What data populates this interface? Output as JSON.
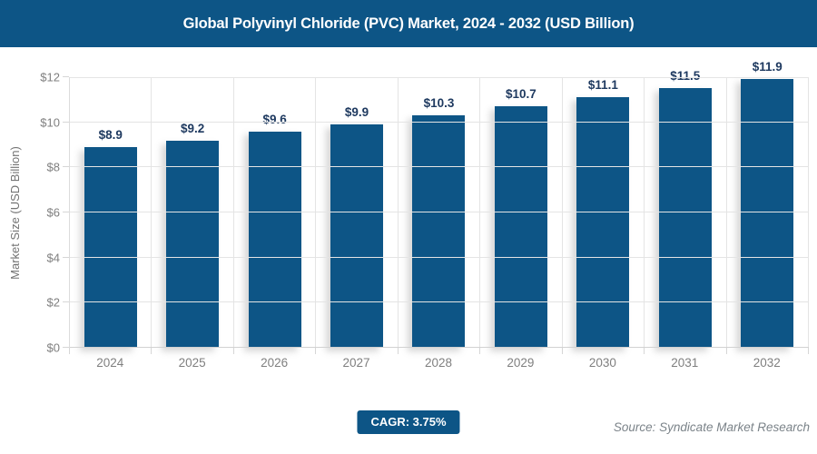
{
  "header": {
    "title": "Global Polyvinyl Chloride (PVC) Market, 2024 - 2032 (USD Billion)"
  },
  "chart_data": {
    "type": "bar",
    "title": "Global Polyvinyl Chloride (PVC) Market, 2024 - 2032 (USD Billion)",
    "categories": [
      "2024",
      "2025",
      "2026",
      "2027",
      "2028",
      "2029",
      "2030",
      "2031",
      "2032"
    ],
    "values": [
      8.9,
      9.2,
      9.6,
      9.9,
      10.3,
      10.7,
      11.1,
      11.5,
      11.9
    ],
    "value_labels": [
      "$8.9",
      "$9.2",
      "$9.6",
      "$9.9",
      "$10.3",
      "$10.7",
      "$11.1",
      "$11.5",
      "$11.9"
    ],
    "xlabel": "",
    "ylabel": "Market Size (USD Billion)",
    "ylim": [
      0,
      12
    ],
    "ytick_step": 2,
    "ytick_labels": [
      "$0",
      "$2",
      "$4",
      "$6",
      "$8",
      "$10",
      "$12"
    ],
    "grid": true,
    "legend": "none",
    "bar_color": "#0D5586",
    "value_label_color": "#1F3A60"
  },
  "footer": {
    "cagr_label": "CAGR: 3.75%",
    "source": "Source: Syndicate Market Research"
  },
  "colors": {
    "brand_blue": "#0D5586",
    "axis_text": "#7f7f7f",
    "gridline": "#e4e4e4"
  }
}
